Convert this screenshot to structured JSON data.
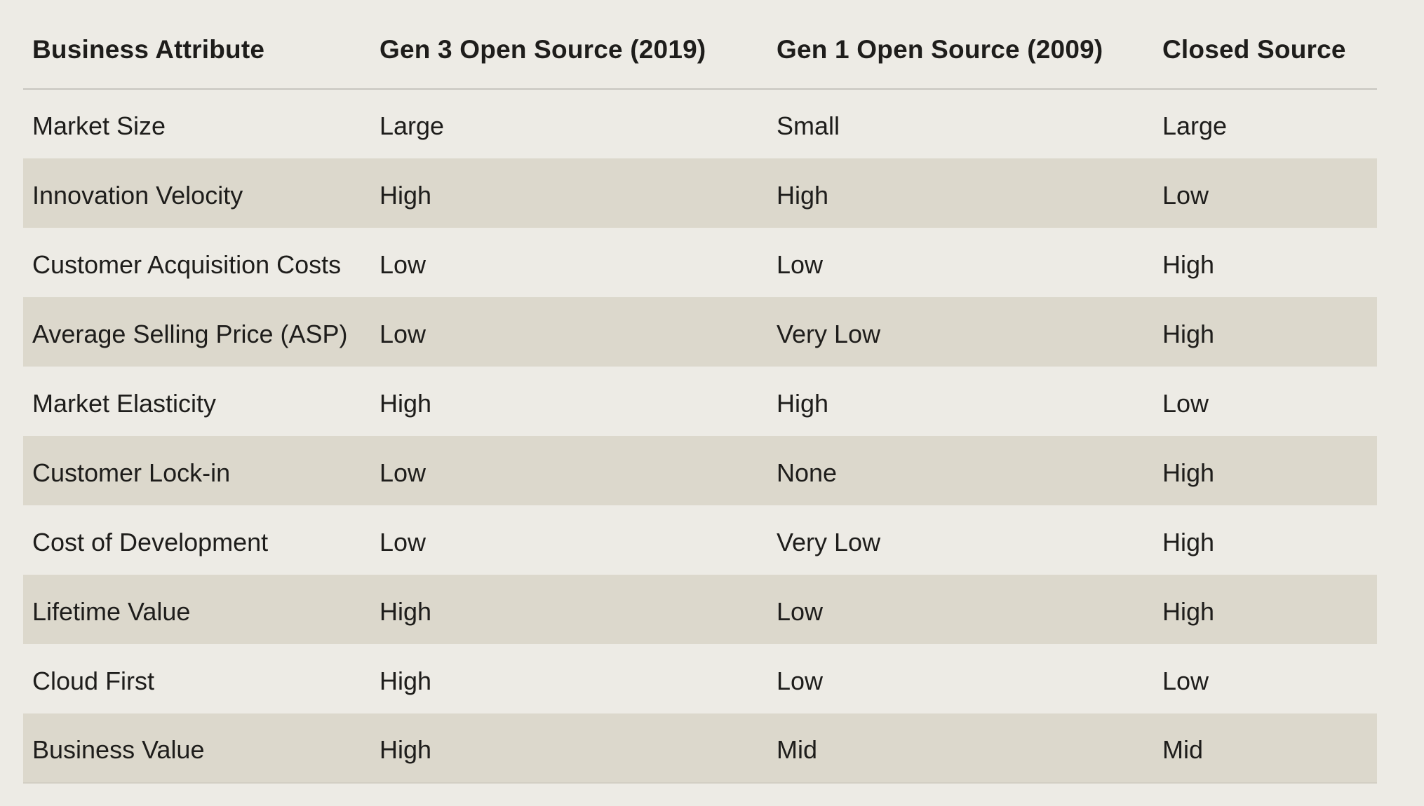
{
  "colors": {
    "page_background": "#edebe5",
    "row_band": "#dcd8cc",
    "header_divider": "#c7c5bf",
    "text": "#1e1d1b"
  },
  "chart_data": {
    "type": "table",
    "columns": [
      "Business Attribute",
      "Gen 3 Open Source (2019)",
      "Gen 1 Open Source (2009)",
      "Closed Source"
    ],
    "rows": [
      [
        "Market Size",
        "Large",
        "Small",
        "Large"
      ],
      [
        "Innovation Velocity",
        "High",
        "High",
        "Low"
      ],
      [
        "Customer Acquisition Costs",
        "Low",
        "Low",
        "High"
      ],
      [
        "Average Selling Price (ASP)",
        "Low",
        "Very Low",
        "High"
      ],
      [
        "Market Elasticity",
        "High",
        "High",
        "Low"
      ],
      [
        "Customer Lock-in",
        "Low",
        "None",
        "High"
      ],
      [
        "Cost of Development",
        "Low",
        "Very Low",
        "High"
      ],
      [
        "Lifetime Value",
        "High",
        "Low",
        "High"
      ],
      [
        "Cloud First",
        "High",
        "Low",
        "Low"
      ],
      [
        "Business Value",
        "High",
        "Mid",
        "Mid"
      ]
    ],
    "layout": {
      "striping": "even-rows-shaded",
      "header_divider": true,
      "legend_position": "none"
    }
  }
}
